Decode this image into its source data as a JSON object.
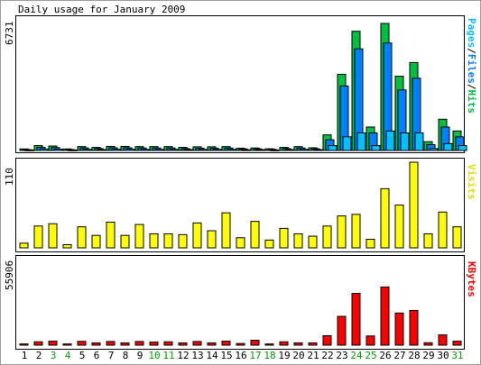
{
  "chart_data": {
    "type": "bar",
    "title": "Daily usage for January 2009",
    "days": [
      "1",
      "2",
      "3",
      "4",
      "5",
      "6",
      "7",
      "8",
      "9",
      "10",
      "11",
      "12",
      "13",
      "14",
      "15",
      "16",
      "17",
      "18",
      "19",
      "20",
      "21",
      "22",
      "23",
      "24",
      "25",
      "26",
      "27",
      "28",
      "29",
      "30",
      "31"
    ],
    "weekend_days": [
      3,
      4,
      10,
      11,
      17,
      18,
      24,
      25,
      31
    ],
    "panels": [
      {
        "name": "hits-panel",
        "max_label": "6731",
        "max": 6731,
        "legend": [
          "Pages",
          "/",
          "Files",
          "/",
          "Hits"
        ],
        "series": [
          {
            "name": "Hits",
            "color": "#00c040",
            "values": [
              80,
              250,
              230,
              80,
              200,
              160,
              210,
              210,
              200,
              200,
              200,
              160,
              190,
              190,
              200,
              120,
              130,
              90,
              160,
              200,
              140,
              800,
              3900,
              6100,
              1200,
              6500,
              3800,
              4500,
              450,
              1600,
              1000
            ]
          },
          {
            "name": "Files",
            "color": "#0080ff",
            "values": [
              50,
              160,
              150,
              50,
              130,
              100,
              140,
              140,
              130,
              130,
              130,
              100,
              120,
              120,
              130,
              80,
              85,
              60,
              100,
              130,
              90,
              550,
              3300,
              5200,
              900,
              5500,
              3100,
              3700,
              300,
              1200,
              700
            ]
          },
          {
            "name": "Pages",
            "color": "#00c0ff",
            "values": [
              30,
              80,
              70,
              30,
              60,
              50,
              70,
              70,
              60,
              60,
              60,
              50,
              60,
              60,
              60,
              40,
              45,
              30,
              50,
              60,
              45,
              250,
              700,
              900,
              250,
              1000,
              900,
              900,
              100,
              350,
              250
            ]
          }
        ]
      },
      {
        "name": "visits-panel",
        "max_label": "110",
        "max": 110,
        "legend": [
          "Visits"
        ],
        "series": [
          {
            "name": "Visits",
            "color": "#ffff00",
            "values": [
              6,
              28,
              31,
              4,
              27,
              16,
              33,
              16,
              30,
              18,
              18,
              17,
              32,
              22,
              45,
              13,
              34,
              10,
              25,
              18,
              15,
              28,
              41,
              43,
              11,
              76,
              55,
              110,
              18,
              46,
              27
            ]
          }
        ]
      },
      {
        "name": "kbytes-panel",
        "max_label": "55906",
        "max": 55906,
        "legend": [
          "KBytes"
        ],
        "series": [
          {
            "name": "KBytes",
            "color": "#ff0000",
            "values": [
              800,
              2200,
              2600,
              800,
              2500,
              1500,
              2400,
              1500,
              2400,
              2000,
              2200,
              1500,
              2400,
              1500,
              2600,
              1100,
              3200,
              800,
              2200,
              1500,
              1500,
              6200,
              18800,
              33800,
              6000,
              38000,
              21000,
              22700,
              1600,
              6700,
              2600
            ]
          }
        ]
      }
    ]
  }
}
